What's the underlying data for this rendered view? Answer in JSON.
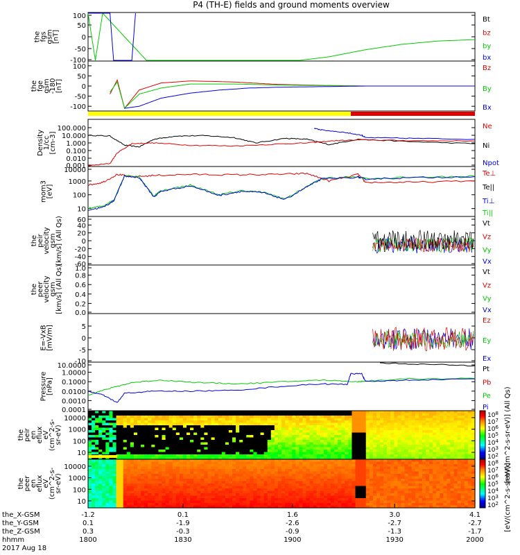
{
  "title": "P4 (TH-E) fields and ground moments overview",
  "colors": {
    "black": "#000000",
    "red": "#e00000",
    "green": "#00cc00",
    "blue": "#0000e0",
    "yellow": "#ffff00"
  },
  "chart_data": [
    {
      "type": "line",
      "panel": "fgs",
      "ylabel": [
        "the",
        "fgs",
        "gsm",
        "[nT]"
      ],
      "ylim": [
        -100,
        100
      ],
      "yticks": [
        "100",
        "50",
        "0",
        "-50",
        "-100"
      ],
      "legend": [
        {
          "name": "Bt",
          "color": "#000000"
        },
        {
          "name": "bz",
          "color": "#e00000"
        },
        {
          "name": "by",
          "color": "#00cc00"
        },
        {
          "name": "bx",
          "color": "#0000e0"
        }
      ],
      "series": [
        {
          "color": "#00cc00",
          "x": [
            -1.2,
            -1.1,
            -1.0,
            -0.4,
            0.2,
            0.9,
            1.3,
            1.7,
            2.1,
            2.6,
            3.1,
            3.6,
            4.1
          ],
          "y": [
            100,
            -100,
            100,
            -100,
            -100,
            -100,
            -100,
            -100,
            -85,
            -55,
            -32,
            -18,
            -12
          ]
        },
        {
          "color": "#0000e0",
          "x": [
            -1.2,
            -0.9,
            -0.85,
            -0.6,
            -0.55
          ],
          "y": [
            100,
            100,
            -100,
            -100,
            100
          ]
        }
      ]
    },
    {
      "type": "line",
      "panel": "fge",
      "ylabel": [
        "the",
        "fge",
        "gsm",
        "-180",
        "[nT]"
      ],
      "ylim": [
        -120,
        120
      ],
      "yticks": [
        "100",
        "50",
        "0",
        "-50",
        "-100"
      ],
      "legend": [
        {
          "name": "Bz",
          "color": "#e00000"
        },
        {
          "name": "By",
          "color": "#00cc00"
        },
        {
          "name": "Bx",
          "color": "#0000e0"
        }
      ],
      "series": [
        {
          "color": "#e00000",
          "x": [
            -0.9,
            -0.8,
            -0.7,
            -0.5,
            -0.2,
            0.2,
            0.8,
            1.4,
            2.0,
            2.6,
            3.4,
            4.1
          ],
          "y": [
            -40,
            30,
            -110,
            -20,
            15,
            25,
            20,
            8,
            3,
            0,
            0,
            0
          ]
        },
        {
          "color": "#00cc00",
          "x": [
            -0.9,
            -0.8,
            -0.7,
            -0.5,
            -0.2,
            0.2,
            0.8,
            1.4,
            2.0,
            2.6,
            3.4,
            4.1
          ],
          "y": [
            -30,
            20,
            -110,
            -40,
            -10,
            10,
            10,
            5,
            2,
            0,
            0,
            0
          ]
        },
        {
          "color": "#0000e0",
          "x": [
            -0.7,
            -0.5,
            -0.2,
            0.2,
            0.6,
            1.0,
            1.4,
            2.0,
            2.6,
            3.4,
            4.1
          ],
          "y": [
            -110,
            -100,
            -60,
            -35,
            -20,
            -10,
            -6,
            -3,
            0,
            0,
            0
          ]
        }
      ]
    },
    {
      "type": "line",
      "panel": "density",
      "log": true,
      "ylabel": [
        "Density",
        "1/cc",
        "[cm-3]"
      ],
      "ylim": [
        0.001,
        1000
      ],
      "yticks": [
        "100.000",
        "10.000",
        "1.000",
        "0.100",
        "0.010",
        "0.001"
      ],
      "legend": [
        {
          "name": "Ne",
          "color": "#e00000"
        },
        {
          "name": "Ni",
          "color": "#000000"
        },
        {
          "name": "Npot",
          "color": "#0000e0"
        }
      ],
      "series": [
        {
          "color": "#000000",
          "x": [
            -1.2,
            -0.9,
            -0.7,
            -0.5,
            -0.3,
            0.0,
            0.4,
            0.8,
            1.1,
            1.5,
            1.8,
            2.1,
            2.5,
            3.2,
            4.1
          ],
          "y": [
            10,
            8,
            0.5,
            0.3,
            3,
            8,
            9,
            5,
            1,
            4,
            3,
            0.6,
            3,
            1.5,
            0.8
          ]
        },
        {
          "color": "#e00000",
          "x": [
            -1.2,
            -0.9,
            -0.8,
            -0.6,
            -0.3,
            0.2,
            0.8,
            1.4,
            1.8,
            2.2,
            2.6,
            3.2,
            4.1
          ],
          "y": [
            0.001,
            0.002,
            0.05,
            0.8,
            1.0,
            0.5,
            0.4,
            0.7,
            1.0,
            2.0,
            2.5,
            2.0,
            1.8
          ]
        },
        {
          "color": "#0000e0",
          "x": [
            1.9,
            2.0,
            2.3,
            2.55,
            2.6,
            3.2,
            4.1
          ],
          "y": [
            80,
            50,
            25,
            10,
            5,
            4,
            3
          ]
        }
      ]
    },
    {
      "type": "line",
      "panel": "temperature",
      "log": true,
      "ylabel": [
        "mom3",
        "[eV]"
      ],
      "ylim": [
        3,
        10000
      ],
      "yticks": [
        "10000",
        "1000",
        "100",
        "10"
      ],
      "legend": [
        {
          "name": "Te⊥",
          "color": "#e00000"
        },
        {
          "name": "Te||",
          "color": "#000000"
        },
        {
          "name": "Ti⊥",
          "color": "#0000e0"
        },
        {
          "name": "Ti||",
          "color": "#00cc00"
        }
      ],
      "series": [
        {
          "color": "#e00000",
          "x": [
            -1.2,
            -1.0,
            -0.8,
            -0.6,
            -0.3,
            0.2,
            0.8,
            1.4,
            1.8,
            2.1,
            2.5,
            2.6,
            3.2,
            4.1
          ],
          "y": [
            500,
            800,
            3000,
            2000,
            2500,
            3000,
            2800,
            3000,
            3500,
            1000,
            3000,
            800,
            800,
            1000
          ]
        },
        {
          "color": "#00cc00",
          "x": [
            -1.2,
            -1.0,
            -0.85,
            -0.7,
            -0.5,
            -0.3,
            -0.2,
            0.2,
            0.6,
            0.9,
            1.2,
            1.5,
            1.8,
            2.0,
            2.5,
            2.6,
            3.2,
            4.1
          ],
          "y": [
            10,
            15,
            40,
            2500,
            2000,
            80,
            200,
            500,
            100,
            200,
            150,
            50,
            400,
            1500,
            2000,
            1500,
            1800,
            2200
          ]
        },
        {
          "color": "#0000e0",
          "x": [
            -1.2,
            -1.0,
            -0.85,
            -0.7,
            -0.5,
            -0.3,
            -0.2,
            0.2,
            0.6,
            0.9,
            1.2,
            1.5,
            1.8,
            2.0,
            2.5,
            2.6,
            3.2,
            4.1
          ],
          "y": [
            8,
            12,
            35,
            2200,
            1800,
            70,
            180,
            450,
            90,
            180,
            140,
            45,
            380,
            1400,
            1900,
            1400,
            1700,
            2100
          ]
        }
      ]
    },
    {
      "type": "line",
      "panel": "peir_velocity",
      "ylabel": [
        "the",
        "peir",
        "velocity",
        "gsm",
        "[km/s] (All Qs)"
      ],
      "ylim": [
        -60,
        60
      ],
      "yticks": [
        "60",
        "40",
        "20",
        "0",
        "-20",
        "-40",
        "-60"
      ],
      "legend": [
        {
          "name": "Vt",
          "color": "#000000"
        },
        {
          "name": "Vz",
          "color": "#e00000"
        },
        {
          "name": "Vy",
          "color": "#00cc00"
        },
        {
          "name": "Vx",
          "color": "#0000e0"
        }
      ],
      "noise_start": 2.7
    },
    {
      "type": "line",
      "panel": "peer_velocity",
      "ylabel": [
        "the",
        "peer",
        "velocity",
        "gsm",
        "[km/s] (All Qs)"
      ],
      "ylim": [
        0,
        1
      ],
      "yticks": [
        "1.0",
        "0.8",
        "0.6",
        "0.4",
        "0.2",
        "0.0"
      ],
      "legend": [
        {
          "name": "Vt",
          "color": "#000000"
        },
        {
          "name": "Vz",
          "color": "#e00000"
        },
        {
          "name": "Vy",
          "color": "#00cc00"
        },
        {
          "name": "Vx",
          "color": "#0000e0"
        }
      ]
    },
    {
      "type": "line",
      "panel": "efield",
      "ylabel": [
        "E=-VxB",
        "[mV/m]"
      ],
      "ylim": [
        -10,
        10
      ],
      "yticks": [
        "5",
        "0",
        "-5",
        "-10"
      ],
      "legend": [
        {
          "name": "Ez",
          "color": "#e00000"
        },
        {
          "name": "Ey",
          "color": "#00cc00"
        },
        {
          "name": "Ex",
          "color": "#0000e0"
        }
      ],
      "noise_start": 2.7
    },
    {
      "type": "line",
      "panel": "pressure",
      "log": true,
      "ylabel": [
        "Pressure",
        "[nPa]"
      ],
      "ylim": [
        0.0001,
        10
      ],
      "yticks": [
        "10.0000",
        "1.0000",
        "0.1000",
        "0.0100",
        "0.0010",
        "0.0001"
      ],
      "legend": [
        {
          "name": "Pt",
          "color": "#000000"
        },
        {
          "name": "Pb",
          "color": "#e00000"
        },
        {
          "name": "Pe",
          "color": "#00cc00"
        },
        {
          "name": "Pi",
          "color": "#0000e0"
        }
      ],
      "series": [
        {
          "color": "#000000",
          "x": [
            2.8,
            3.4,
            4.1
          ],
          "y": [
            9.5,
            7,
            5
          ]
        },
        {
          "color": "#00cc00",
          "x": [
            -1.2,
            -0.9,
            -0.6,
            -0.2,
            0.3,
            0.9,
            1.5,
            2.0,
            2.5,
            2.6,
            3.2,
            4.1
          ],
          "y": [
            0.004,
            0.02,
            0.08,
            0.15,
            0.08,
            0.06,
            0.1,
            0.15,
            0.1,
            0.12,
            0.2,
            0.22
          ]
        },
        {
          "color": "#0000e0",
          "x": [
            -1.2,
            -1.0,
            -0.8,
            -0.7,
            -0.3,
            0.2,
            0.8,
            1.4,
            2.0,
            2.35,
            2.4,
            2.55,
            2.6,
            3.2,
            4.1
          ],
          "y": [
            0.01,
            0.004,
            0.0006,
            0.006,
            0.01,
            0.01,
            0.012,
            0.03,
            0.06,
            0.05,
            0.7,
            0.7,
            0.1,
            0.15,
            0.2
          ]
        }
      ]
    },
    {
      "type": "heatmap",
      "panel": "peir_spectrogram",
      "ylabel": [
        "the",
        "peir",
        "en",
        "eflux",
        "eV",
        "(cm^2-s-",
        "sr-eV)"
      ],
      "yticks": [
        "10000",
        "1000",
        "100",
        "10"
      ],
      "colorbar_label": "[eV/(cm^2-s-sr-eV)] (All Qs)",
      "colorbar_ticks": [
        "10^8",
        "10^7",
        "10^6",
        "10^5",
        "10^4",
        "10^3",
        "10^2"
      ]
    },
    {
      "type": "heatmap",
      "panel": "peer_spectrogram",
      "ylabel": [
        "the",
        "peer",
        "en",
        "eflux",
        "eV",
        "(cm^2-s-",
        "sr-eV)"
      ],
      "yticks": [
        "10000",
        "1000",
        "100",
        "10"
      ],
      "colorbar_label": "[eV/(cm^2-s-sr-eV)]",
      "colorbar_ticks": [
        "10^8",
        "10^7",
        "10^6",
        "10^5",
        "10^4",
        "10^3",
        "10^2"
      ]
    }
  ],
  "mode_bar": {
    "yellow_until": 2.4
  },
  "xaxis": {
    "row_labels": [
      "the_X-GSM",
      "the_Y-GSM",
      "the_Z-GSM",
      "hhmm",
      "2017 Aug 18"
    ],
    "ticks": [
      {
        "x": -1.2,
        "X": "-1.2",
        "Y": "0.1",
        "Z": "0.3",
        "hhmm": "1800"
      },
      {
        "x": 0.1,
        "X": "0.1",
        "Y": "-1.9",
        "Z": "-0.3",
        "hhmm": "1830"
      },
      {
        "x": 1.6,
        "X": "1.6",
        "Y": "-2.6",
        "Z": "-0.9",
        "hhmm": "1900"
      },
      {
        "x": 3.0,
        "X": "3.0",
        "Y": "-2.7",
        "Z": "-1.3",
        "hhmm": "1930"
      },
      {
        "x": 4.1,
        "X": "4.1",
        "Y": "-2.7",
        "Z": "-1.7",
        "hhmm": "2000"
      }
    ],
    "xlim": [
      -1.2,
      4.1
    ]
  }
}
